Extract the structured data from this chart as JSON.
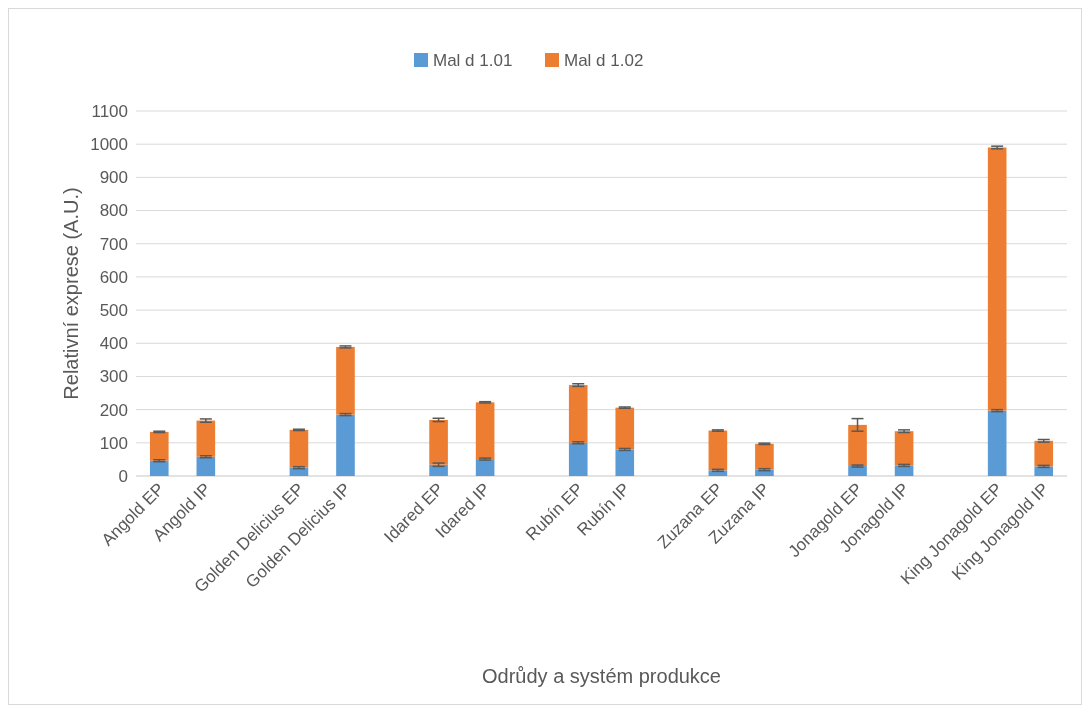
{
  "chart_data": {
    "type": "bar",
    "stacked": true,
    "xlabel": "Odrůdy a systém produkce",
    "ylabel": "Relativní exprese (A.U.)",
    "categories": [
      "Angold EP",
      "Angold IP",
      null,
      "Golden Delicius EP",
      "Golden Delicius IP",
      null,
      "Idared EP",
      "Idared IP",
      null,
      "Rubín EP",
      "Rubín IP",
      null,
      "Zuzana EP",
      "Zuzana IP",
      null,
      "Jonagold EP",
      "Jonagold IP",
      null,
      "King Jonagold EP",
      "King Jonagold IP"
    ],
    "series": [
      {
        "name": "Mal d 1.01",
        "color": "#5b9bd5",
        "values": [
          46,
          58,
          null,
          25,
          185,
          null,
          34,
          51,
          null,
          100,
          80,
          null,
          17,
          19,
          null,
          30,
          32,
          null,
          197,
          29
        ],
        "errors": [
          3,
          3,
          null,
          3,
          3,
          null,
          5,
          3,
          null,
          3,
          3,
          null,
          3,
          3,
          null,
          3,
          3,
          null,
          3,
          3
        ]
      },
      {
        "name": "Mal d 1.02",
        "color": "#ed7d31",
        "values": [
          87,
          109,
          null,
          114,
          204,
          null,
          135,
          171,
          null,
          174,
          126,
          null,
          120,
          78,
          null,
          124,
          103,
          null,
          793,
          77
        ],
        "errors": [
          2,
          5,
          null,
          2,
          3,
          null,
          5,
          2,
          null,
          4,
          2,
          null,
          2,
          2,
          null,
          19,
          4,
          null,
          4,
          4
        ]
      }
    ],
    "ylim": [
      0,
      1100
    ],
    "yticks": [
      0,
      100,
      200,
      300,
      400,
      500,
      600,
      700,
      800,
      900,
      1000,
      1100
    ],
    "grid": "y",
    "legend": "top"
  }
}
